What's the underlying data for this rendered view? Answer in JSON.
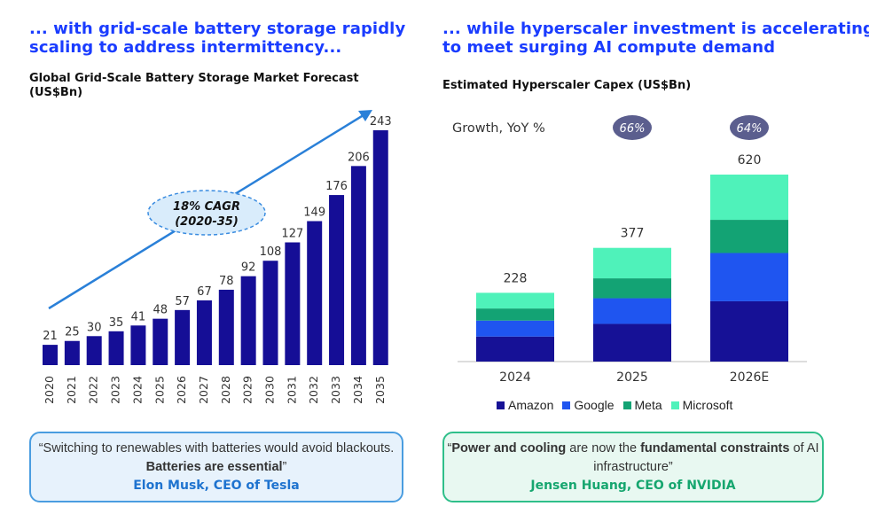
{
  "left": {
    "headline": [
      "... with grid-scale battery storage rapidly",
      "scaling to address intermittency..."
    ],
    "subtitle": [
      "Global Grid-Scale Battery Storage Market Forecast",
      "(US$Bn)"
    ],
    "cagr_label": [
      "18% CAGR",
      "(2020-35)"
    ],
    "quote": {
      "text_before": "“Switching to renewables with batteries would avoid blackouts. ",
      "text_bold": "Batteries are essential",
      "text_after": "”",
      "author": "Elon Musk, CEO of Tesla"
    }
  },
  "right": {
    "headline": [
      "... while hyperscaler investment is accelerating",
      "to meet surging AI compute demand"
    ],
    "subtitle": [
      "Estimated Hyperscaler Capex (US$Bn)"
    ],
    "growth_label": "Growth, YoY %",
    "quote": {
      "q_open": "“",
      "bold1": "Power and cooling",
      "mid": " are now the ",
      "bold2": "fundamental constraints",
      "tail": " of AI infrastructure”",
      "author": "Jensen Huang, CEO of NVIDIA"
    }
  },
  "colors": {
    "bar_navy": "#150e96",
    "amazon": "#161196",
    "google": "#1f55f0",
    "meta": "#13a374",
    "microsoft": "#4ff2ba",
    "arrow": "#2a80d8",
    "growth_pill": "#5b5e8e",
    "headline_blue": "#1a3cff"
  },
  "chart_data": [
    {
      "type": "bar",
      "title": "Global Grid-Scale Battery Storage Market Forecast (US$Bn)",
      "categories": [
        "2020",
        "2021",
        "2022",
        "2023",
        "2024",
        "2025",
        "2026",
        "2027",
        "2028",
        "2029",
        "2030",
        "2031",
        "2032",
        "2033",
        "2034",
        "2035"
      ],
      "values": [
        21,
        25,
        30,
        35,
        41,
        48,
        57,
        67,
        78,
        92,
        108,
        127,
        149,
        176,
        206,
        243
      ],
      "annotation": "18% CAGR (2020-35)",
      "ylim": [
        0,
        243
      ]
    },
    {
      "type": "bar",
      "stacked": true,
      "title": "Estimated Hyperscaler Capex (US$Bn)",
      "categories": [
        "2024",
        "2025",
        "2026E"
      ],
      "totals": [
        228,
        377,
        620
      ],
      "growth_yoy": [
        "",
        "66%",
        "64%"
      ],
      "series": [
        {
          "name": "Amazon",
          "values": [
            83,
            125,
            200
          ]
        },
        {
          "name": "Google",
          "values": [
            53,
            85,
            160
          ]
        },
        {
          "name": "Meta",
          "values": [
            40,
            66,
            110
          ]
        },
        {
          "name": "Microsoft",
          "values": [
            52,
            101,
            150
          ]
        }
      ],
      "legend": "bottom"
    }
  ]
}
